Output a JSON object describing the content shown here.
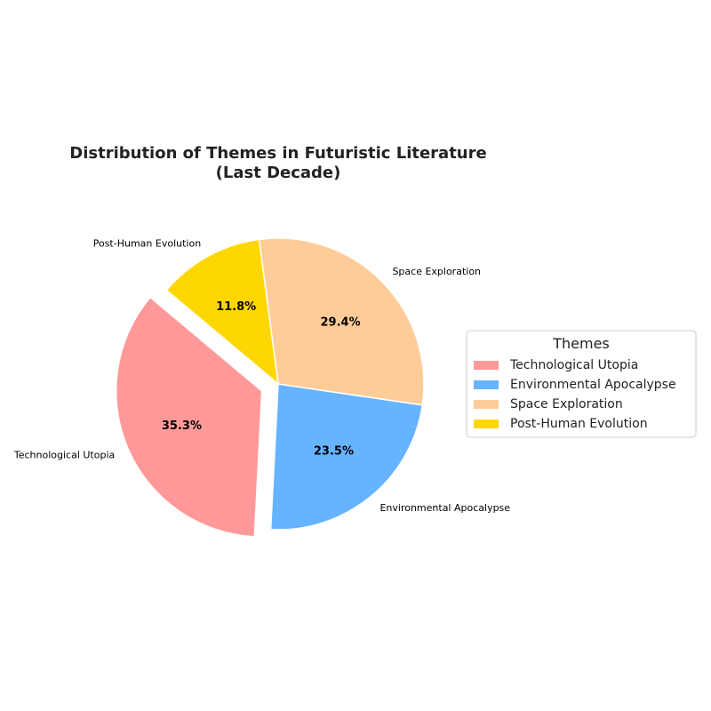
{
  "chart_data": {
    "type": "pie",
    "title_lines": [
      "Distribution of Themes in Futuristic Literature",
      "(Last Decade)"
    ],
    "categories": [
      "Technological Utopia",
      "Environmental Apocalypse",
      "Space Exploration",
      "Post-Human Evolution"
    ],
    "values": [
      35.3,
      23.5,
      29.4,
      11.8
    ],
    "value_labels": [
      "35.3%",
      "23.5%",
      "29.4%",
      "11.8%"
    ],
    "colors": [
      "#FF9999",
      "#66B3FF",
      "#FFCC99",
      "#FFD700"
    ],
    "exploded": [
      true,
      false,
      false,
      false
    ],
    "start_angle_deg": 140,
    "direction": "counterclockwise",
    "legend": {
      "title": "Themes",
      "placement": "right",
      "entries": [
        "Technological Utopia",
        "Environmental Apocalypse",
        "Space Exploration",
        "Post-Human Evolution"
      ]
    }
  }
}
